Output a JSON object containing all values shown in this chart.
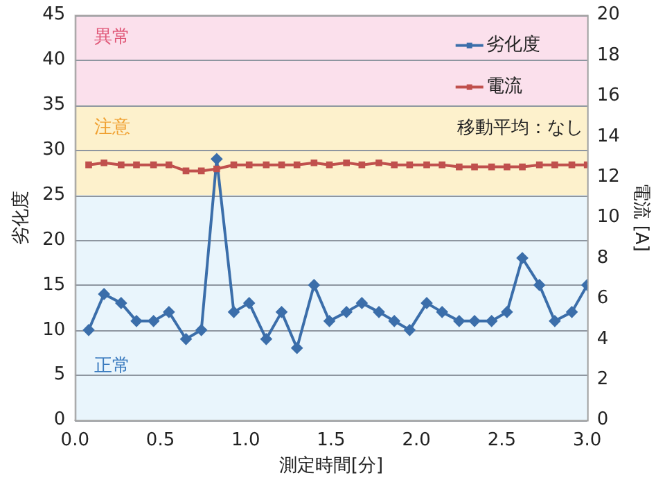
{
  "chart_data": {
    "type": "line",
    "xlabel": "測定時間[分]",
    "ylabel": "劣化度",
    "y2label": "電流 [A]",
    "x": [
      0.08,
      0.17,
      0.27,
      0.36,
      0.46,
      0.55,
      0.65,
      0.74,
      0.83,
      0.93,
      1.02,
      1.12,
      1.21,
      1.3,
      1.4,
      1.49,
      1.59,
      1.68,
      1.78,
      1.87,
      1.96,
      2.06,
      2.15,
      2.25,
      2.34,
      2.44,
      2.53,
      2.62,
      2.72,
      2.81,
      2.91,
      3.0
    ],
    "series": [
      {
        "name": "劣化度",
        "color": "#3b6eaa",
        "marker": "diamond",
        "values": [
          10,
          14,
          13,
          11,
          11,
          12,
          9,
          10,
          29,
          12,
          13,
          9,
          12,
          8,
          15,
          11,
          12,
          13,
          12,
          11,
          10,
          13,
          12,
          11,
          11,
          11,
          12,
          18,
          15,
          11,
          12,
          15
        ]
      },
      {
        "name": "電流",
        "color": "#c0504d",
        "marker": "square",
        "axis": "y2",
        "values": [
          12.6,
          12.7,
          12.6,
          12.6,
          12.6,
          12.6,
          12.3,
          12.3,
          12.4,
          12.6,
          12.6,
          12.6,
          12.6,
          12.6,
          12.7,
          12.6,
          12.7,
          12.6,
          12.7,
          12.6,
          12.6,
          12.6,
          12.6,
          12.5,
          12.5,
          12.5,
          12.5,
          12.5,
          12.6,
          12.6,
          12.6,
          12.6
        ]
      }
    ],
    "xlim": [
      0,
      3
    ],
    "xticks": [
      {
        "value": 0,
        "label": "0.0"
      },
      {
        "value": 0.5,
        "label": "0.5"
      },
      {
        "value": 1,
        "label": "1.0"
      },
      {
        "value": 1.5,
        "label": "1.5"
      },
      {
        "value": 2,
        "label": "2.0"
      },
      {
        "value": 2.5,
        "label": "2.5"
      },
      {
        "value": 3,
        "label": "3.0"
      }
    ],
    "ylim": [
      0,
      45
    ],
    "yticks": [
      0,
      5,
      10,
      15,
      20,
      25,
      30,
      35,
      40,
      45
    ],
    "y2lim": [
      0,
      20
    ],
    "y2ticks": [
      0,
      2,
      4,
      6,
      8,
      10,
      12,
      14,
      16,
      18,
      20
    ],
    "bands": [
      {
        "axis": "y",
        "from": 0,
        "to": 25,
        "label": "正常",
        "color": "#e9f5fc"
      },
      {
        "axis": "y",
        "from": 25,
        "to": 35,
        "label": "注意",
        "color": "#fdf1cc"
      },
      {
        "axis": "y",
        "from": 35,
        "to": 45,
        "label": "異常",
        "color": "#fbe0ec"
      }
    ],
    "annotations": [
      "移動平均：なし"
    ],
    "grid": "y",
    "legend": "top right",
    "line_style": "solid"
  }
}
